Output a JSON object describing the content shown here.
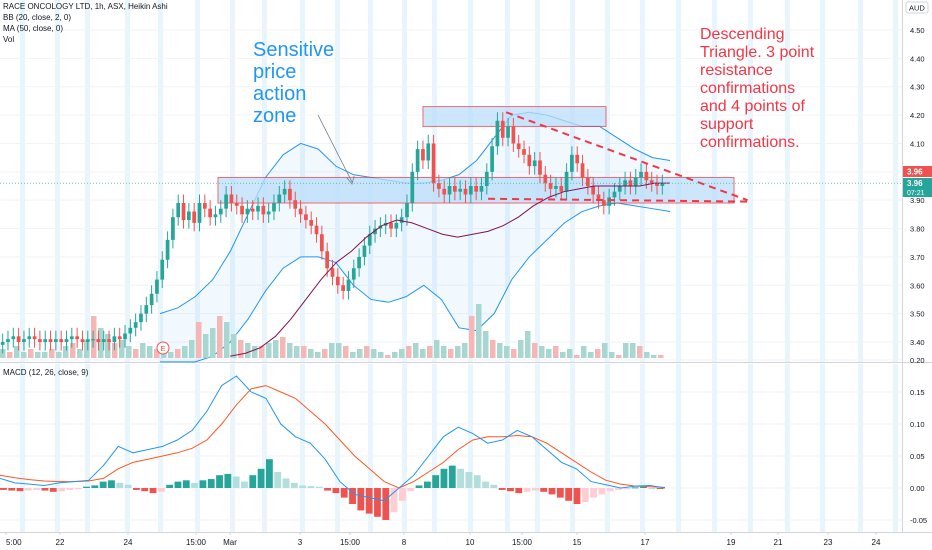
{
  "legend": {
    "symbol_line": "RACE ONCOLOGY LTD, 1h, ASX, Heikin Ashi",
    "bb_line": "BB (20, close, 2, 0)",
    "ma_line": "MA (50, close, 0)",
    "vol_line": "Vol",
    "macd_line": "MACD (12, 26, close, 9)"
  },
  "currency": "AUD",
  "annotations": {
    "zone": [
      "Sensitive",
      "price",
      "action",
      "zone"
    ],
    "pattern": [
      "Descending",
      "Triangle. 3 point",
      "resistance",
      "confirmations",
      "and 4 points of",
      "support",
      "confirmations."
    ]
  },
  "earnings_marker": "E",
  "price_tag": {
    "value": "3.96",
    "countdown": "07:21",
    "ma_value": "3.96"
  },
  "colors": {
    "up": "#26a69a",
    "down": "#ef5350",
    "bb": "#2196f3",
    "ma": "#880e4f",
    "macd": "#2196f3",
    "signal": "#ff5722",
    "zone_fill": "#bbdefb",
    "trend": "#f23645"
  },
  "chart_data": [
    {
      "type": "candlestick",
      "title": "RACE ONCOLOGY LTD, 1h, ASX, Heikin Ashi",
      "y_ticks": [
        3.4,
        3.5,
        3.6,
        3.7,
        3.8,
        3.9,
        4.0,
        4.1,
        4.2,
        4.3,
        4.4,
        4.5
      ],
      "ylim": [
        3.35,
        4.55
      ],
      "x_ticks": [
        "5:00",
        "22",
        "24",
        "15:00",
        "Mar",
        "3",
        "15:00",
        "8",
        "10",
        "15:00",
        "15",
        "17",
        "19",
        "21",
        "23",
        "24"
      ],
      "price_series": [
        3.4,
        3.41,
        3.42,
        3.4,
        3.41,
        3.42,
        3.41,
        3.4,
        3.41,
        3.4,
        3.41,
        3.4,
        3.41,
        3.42,
        3.41,
        3.4,
        3.41,
        3.41,
        3.4,
        3.41,
        3.4,
        3.42,
        3.41,
        3.43,
        3.45,
        3.47,
        3.5,
        3.53,
        3.57,
        3.62,
        3.69,
        3.76,
        3.84,
        3.89,
        3.83,
        3.86,
        3.82,
        3.89,
        3.87,
        3.84,
        3.85,
        3.87,
        3.92,
        3.89,
        3.88,
        3.85,
        3.87,
        3.86,
        3.88,
        3.85,
        3.86,
        3.89,
        3.92,
        3.94,
        3.9,
        3.87,
        3.85,
        3.83,
        3.81,
        3.78,
        3.72,
        3.66,
        3.63,
        3.6,
        3.58,
        3.62,
        3.66,
        3.7,
        3.74,
        3.78,
        3.8,
        3.81,
        3.82,
        3.8,
        3.82,
        3.84,
        3.89,
        4.0,
        4.08,
        4.04,
        4.1,
        3.96,
        3.94,
        3.92,
        3.95,
        3.93,
        3.94,
        3.92,
        3.95,
        3.93,
        3.95,
        4.0,
        4.09,
        4.18,
        4.12,
        4.16,
        4.1,
        4.08,
        4.06,
        4.02,
        4.04,
        3.99,
        3.96,
        3.94,
        3.95,
        3.93,
        4.0,
        4.06,
        4.03,
        3.98,
        3.95,
        3.92,
        3.9,
        3.88,
        3.91,
        3.93,
        3.95,
        3.97,
        3.95,
        3.98,
        4.0,
        3.97,
        3.96,
        3.95,
        3.96
      ],
      "bb_upper": [
        3.5,
        3.52,
        3.56,
        3.62,
        3.72,
        3.85,
        3.98,
        4.06,
        4.1,
        4.08,
        4.02,
        3.99,
        3.98,
        3.97,
        3.96,
        3.96,
        3.97,
        3.99,
        4.04,
        4.12,
        4.2,
        4.21,
        4.2,
        4.18,
        4.16,
        4.16,
        4.12,
        4.08,
        4.05,
        4.04
      ],
      "bb_lower": [
        3.33,
        3.33,
        3.33,
        3.35,
        3.4,
        3.48,
        3.58,
        3.66,
        3.7,
        3.7,
        3.68,
        3.6,
        3.55,
        3.54,
        3.56,
        3.6,
        3.55,
        3.45,
        3.44,
        3.5,
        3.62,
        3.7,
        3.76,
        3.82,
        3.86,
        3.88,
        3.89,
        3.88,
        3.87,
        3.86
      ],
      "ma50": [
        3.35,
        3.36,
        3.38,
        3.42,
        3.48,
        3.55,
        3.62,
        3.68,
        3.72,
        3.77,
        3.81,
        3.83,
        3.82,
        3.8,
        3.78,
        3.77,
        3.78,
        3.79,
        3.81,
        3.84,
        3.88,
        3.91,
        3.93,
        3.94,
        3.95,
        3.95,
        3.95,
        3.95,
        3.96,
        3.96
      ],
      "zones": [
        {
          "name": "resistance-zone",
          "x": [
            "22 15:00",
            "17 15:00"
          ],
          "y": [
            3.89,
            3.98
          ]
        },
        {
          "name": "top-zone",
          "x": [
            "8 15:00",
            "15"
          ],
          "y": [
            4.16,
            4.23
          ]
        }
      ],
      "trendlines": [
        {
          "name": "resistance",
          "from": [
            0.55,
            4.21
          ],
          "to": [
            0.79,
            3.9
          ]
        },
        {
          "name": "support",
          "from": [
            0.53,
            3.905
          ],
          "to": [
            0.79,
            3.895
          ]
        }
      ],
      "volume": [
        3,
        2,
        4,
        2,
        3,
        2,
        2,
        3,
        2,
        4,
        5,
        3,
        6,
        14,
        10,
        8,
        5,
        6,
        4,
        3,
        5,
        4,
        3,
        4,
        2,
        3,
        4,
        6,
        12,
        8,
        10,
        14,
        12,
        8,
        6,
        5,
        4,
        4,
        5,
        6,
        7,
        5,
        4,
        4,
        3,
        2,
        3,
        5,
        5,
        4,
        2,
        3,
        4,
        3,
        2,
        1,
        2,
        3,
        4,
        5,
        3,
        4,
        6,
        4,
        3,
        4,
        5,
        14,
        18,
        9,
        6,
        5,
        4,
        3,
        6,
        9,
        5,
        4,
        3,
        4,
        2,
        3,
        1,
        4,
        2,
        3,
        5,
        2,
        1,
        5,
        5,
        4,
        2,
        1,
        1
      ]
    },
    {
      "type": "line",
      "title": "MACD (12, 26, close, 9)",
      "y_ticks": [
        -0.05,
        0.0,
        0.05,
        0.1,
        0.15,
        0.2
      ],
      "ylim": [
        -0.07,
        0.21
      ],
      "macd": [
        0.015,
        0.008,
        0.006,
        0.004,
        0.008,
        0.01,
        0.012,
        0.035,
        0.065,
        0.055,
        0.06,
        0.065,
        0.075,
        0.09,
        0.12,
        0.16,
        0.175,
        0.15,
        0.14,
        0.1,
        0.08,
        0.07,
        0.045,
        0.01,
        -0.01,
        -0.015,
        -0.02,
        0.0,
        0.02,
        0.05,
        0.08,
        0.095,
        0.085,
        0.07,
        0.075,
        0.09,
        0.08,
        0.06,
        0.04,
        0.03,
        0.01,
        0.005,
        0.0,
        0.003,
        0.004,
        0.0
      ],
      "signal": [
        0.02,
        0.016,
        0.013,
        0.011,
        0.01,
        0.01,
        0.011,
        0.015,
        0.03,
        0.04,
        0.045,
        0.05,
        0.055,
        0.062,
        0.075,
        0.1,
        0.13,
        0.155,
        0.16,
        0.15,
        0.14,
        0.12,
        0.1,
        0.075,
        0.05,
        0.03,
        0.01,
        0.0,
        0.01,
        0.025,
        0.04,
        0.06,
        0.075,
        0.08,
        0.08,
        0.082,
        0.08,
        0.07,
        0.055,
        0.04,
        0.025,
        0.012,
        0.006,
        0.003,
        0.002,
        0.001
      ],
      "histogram": [
        -0.003,
        -0.004,
        -0.005,
        -0.004,
        -0.003,
        -0.004,
        -0.006,
        -0.005,
        -0.003,
        -0.002,
        0.002,
        0.004,
        0.01,
        0.012,
        0.008,
        0.005,
        -0.003,
        -0.005,
        -0.008,
        -0.006,
        0.005,
        0.01,
        0.012,
        0.008,
        0.012,
        0.014,
        0.02,
        0.022,
        0.018,
        0.01,
        0.02,
        0.03,
        0.045,
        0.025,
        0.015,
        0.008,
        0.004,
        0.003,
        0.002,
        -0.004,
        -0.008,
        -0.015,
        -0.025,
        -0.035,
        -0.04,
        -0.045,
        -0.05,
        -0.038,
        -0.02,
        -0.005,
        0.004,
        0.01,
        0.02,
        0.03,
        0.035,
        0.03,
        0.025,
        0.02,
        0.01,
        0.005,
        -0.003,
        -0.005,
        -0.008,
        -0.006,
        -0.004,
        -0.006,
        -0.01,
        -0.015,
        -0.02,
        -0.025,
        -0.022,
        -0.015,
        -0.01,
        -0.005,
        -0.003,
        -0.002,
        0.001,
        0.002,
        0.0,
        -0.001
      ]
    }
  ]
}
